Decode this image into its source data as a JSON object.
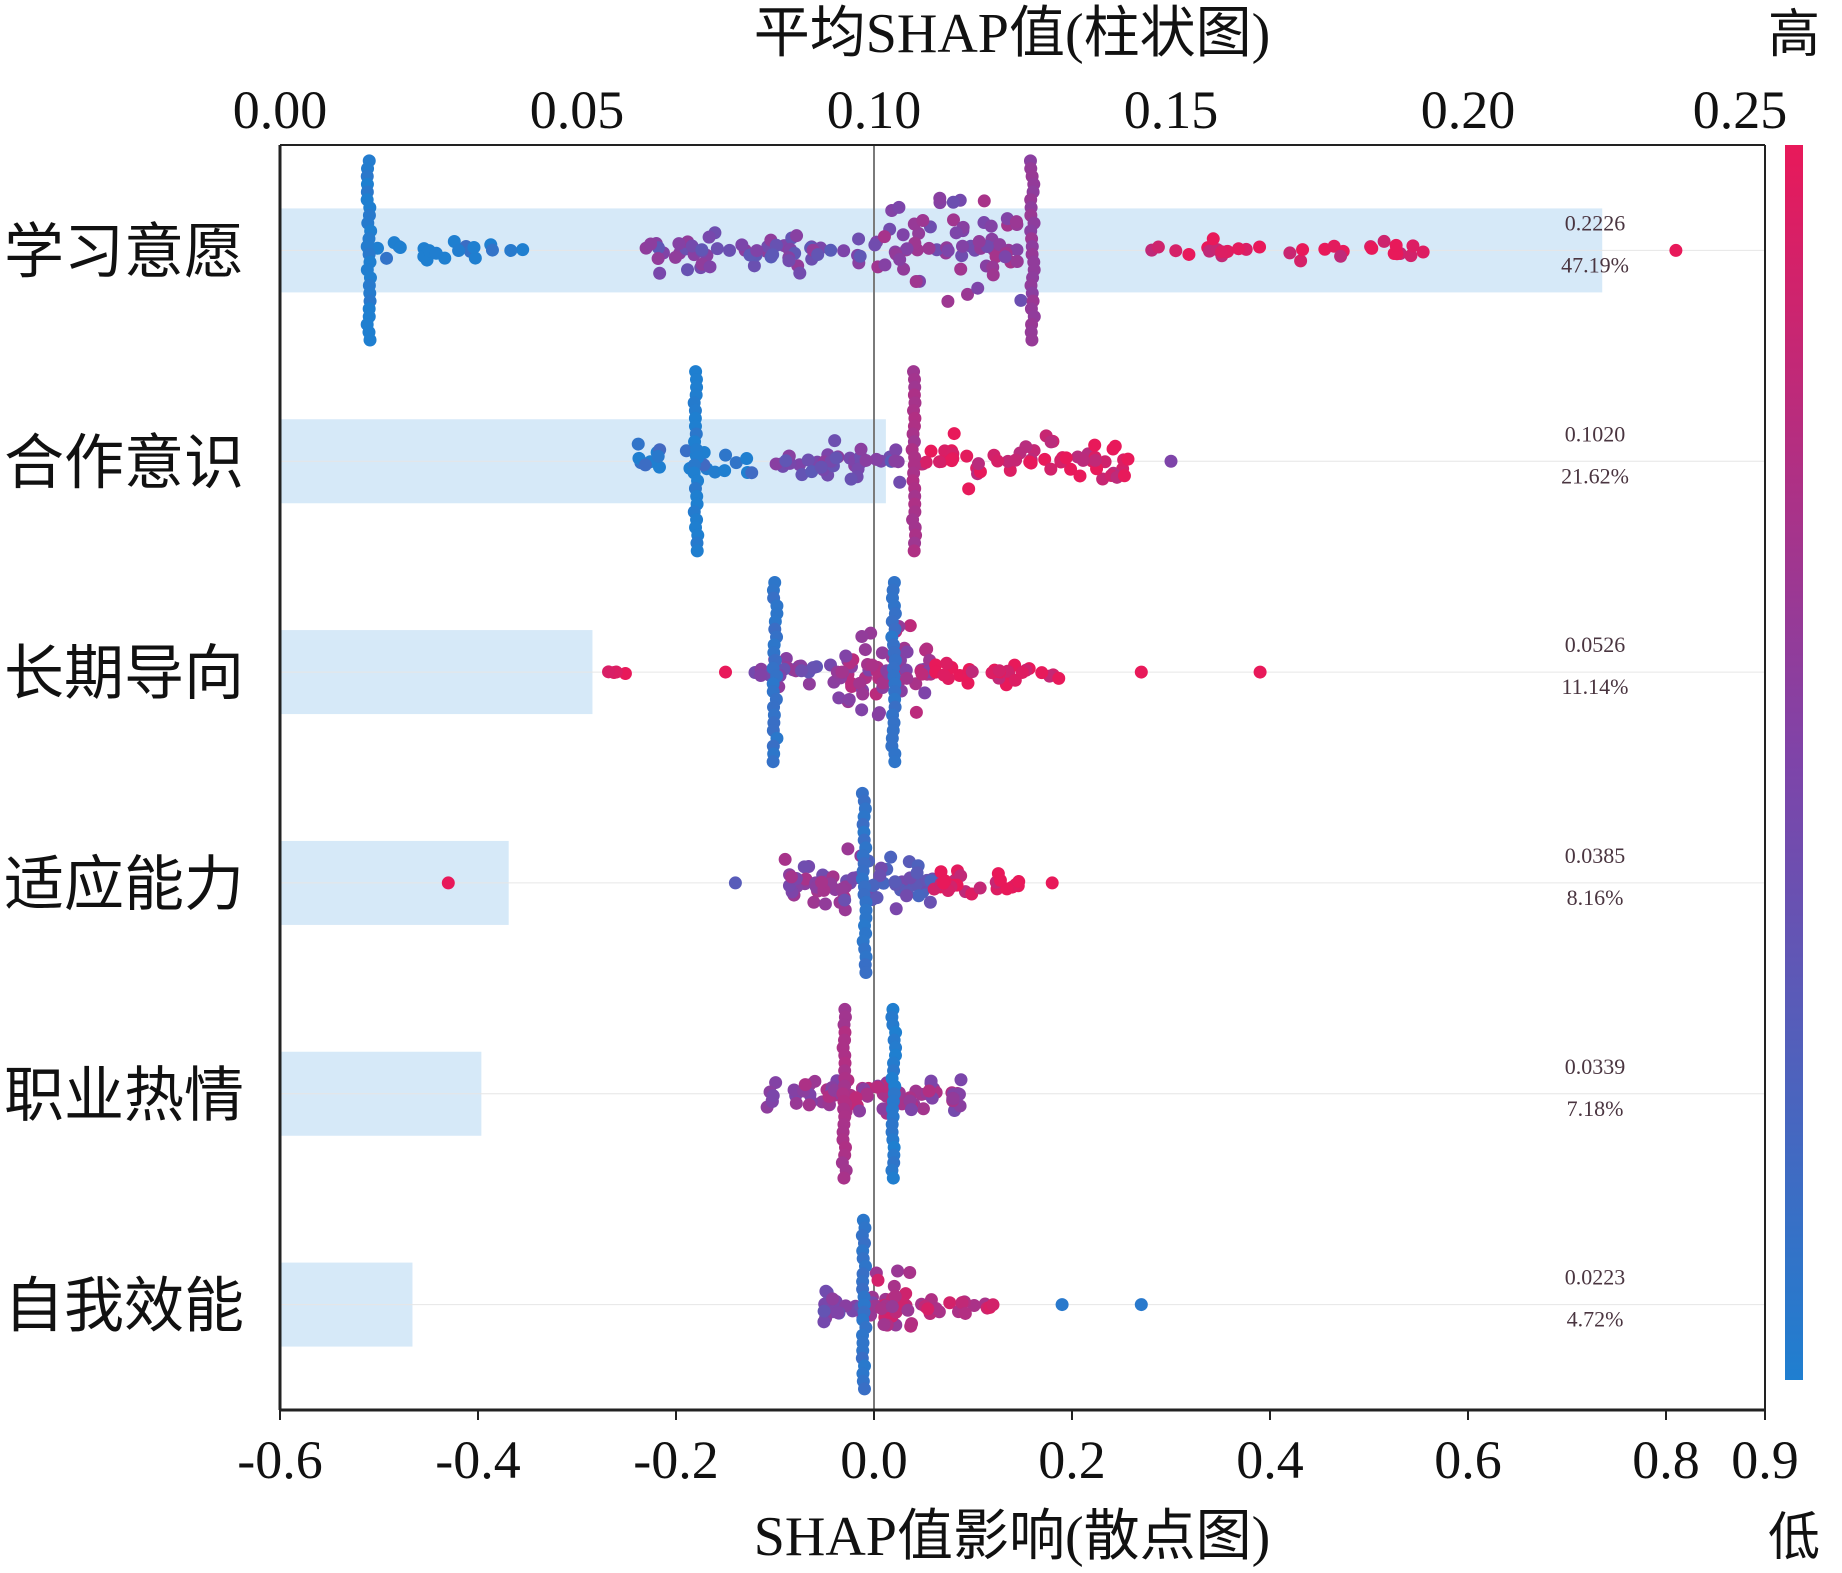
{
  "chart_data": {
    "type": "scatter",
    "title": "",
    "top_axis": {
      "label": "平均SHAP值(柱状图)",
      "ticks": [
        "0.00",
        "0.05",
        "0.10",
        "0.15",
        "0.20",
        "0.25"
      ],
      "range": [
        0,
        0.25
      ]
    },
    "bottom_axis": {
      "label": "SHAP值影响(散点图)",
      "ticks": [
        "-0.6",
        "-0.4",
        "-0.2",
        "0.0",
        "0.2",
        "0.4",
        "0.6",
        "0.8",
        "0.9"
      ],
      "range": [
        -0.6,
        0.9
      ]
    },
    "colorbar": {
      "high": "高",
      "low": "低",
      "high_color": "#e8195a",
      "low_color": "#1f7fd0"
    },
    "colors": {
      "bar": "#d6e9f8",
      "zero_line": "#7a7a7a",
      "axis": "#222222"
    },
    "features": [
      {
        "name": "学习意愿",
        "mean_shap": 0.2226,
        "value_label": "0.2226",
        "percent": "47.19%",
        "strips": [
          {
            "x": -0.51,
            "spread": 0.85
          },
          {
            "x": 0.16,
            "spread": 0.85
          }
        ],
        "clusters": [
          {
            "min": -0.53,
            "max": -0.35,
            "color": 0.0,
            "count": 22,
            "spread": 0.15
          },
          {
            "min": -0.24,
            "max": -0.01,
            "color": 0.45,
            "count": 60,
            "spread": 0.28
          },
          {
            "min": 0.0,
            "max": 0.15,
            "color": 0.55,
            "count": 70,
            "spread": 0.55
          },
          {
            "min": 0.28,
            "max": 0.56,
            "color": 0.95,
            "count": 32,
            "spread": 0.12
          }
        ],
        "outliers": [
          {
            "x": 0.81,
            "c": 1.0
          }
        ]
      },
      {
        "name": "合作意识",
        "mean_shap": 0.102,
        "value_label": "0.1020",
        "percent": "21.62%",
        "strips": [
          {
            "x": -0.18,
            "spread": 0.85
          },
          {
            "x": 0.04,
            "spread": 0.85
          }
        ],
        "clusters": [
          {
            "min": -0.24,
            "max": -0.12,
            "color": 0.05,
            "count": 22,
            "spread": 0.2
          },
          {
            "min": -0.1,
            "max": 0.03,
            "color": 0.45,
            "count": 40,
            "spread": 0.25
          },
          {
            "min": 0.04,
            "max": 0.26,
            "color": 0.92,
            "count": 60,
            "spread": 0.3
          }
        ],
        "outliers": [
          {
            "x": 0.3,
            "c": 0.5
          }
        ]
      },
      {
        "name": "长期导向",
        "mean_shap": 0.0526,
        "value_label": "0.0526",
        "percent": "11.14%",
        "strips": [
          {
            "x": -0.1,
            "spread": 0.85
          },
          {
            "x": 0.02,
            "spread": 0.85
          }
        ],
        "clusters": [
          {
            "min": -0.27,
            "max": -0.25,
            "color": 1.0,
            "count": 4,
            "spread": 0.08
          },
          {
            "min": -0.13,
            "max": -0.04,
            "color": 0.5,
            "count": 22,
            "spread": 0.22
          },
          {
            "min": -0.04,
            "max": 0.06,
            "color": 0.65,
            "count": 65,
            "spread": 0.55
          },
          {
            "min": 0.06,
            "max": 0.19,
            "color": 0.95,
            "count": 30,
            "spread": 0.15
          }
        ],
        "outliers": [
          {
            "x": -0.15,
            "c": 1.0
          },
          {
            "x": 0.27,
            "c": 1.0
          },
          {
            "x": 0.39,
            "c": 1.0
          }
        ]
      },
      {
        "name": "适应能力",
        "mean_shap": 0.0385,
        "value_label": "0.0385",
        "percent": "8.16%",
        "strips": [
          {
            "x": -0.01,
            "spread": 0.85
          }
        ],
        "clusters": [
          {
            "min": -0.09,
            "max": -0.01,
            "color": 0.55,
            "count": 40,
            "spread": 0.35
          },
          {
            "min": -0.01,
            "max": 0.06,
            "color": 0.35,
            "count": 35,
            "spread": 0.3
          },
          {
            "min": 0.06,
            "max": 0.15,
            "color": 0.95,
            "count": 25,
            "spread": 0.15
          }
        ],
        "outliers": [
          {
            "x": -0.43,
            "c": 1.0
          },
          {
            "x": -0.14,
            "c": 0.3
          },
          {
            "x": 0.18,
            "c": 1.0
          }
        ]
      },
      {
        "name": "职业热情",
        "mean_shap": 0.0339,
        "value_label": "0.0339",
        "percent": "7.18%",
        "strips": [
          {
            "x": -0.03,
            "spread": 0.8
          },
          {
            "x": 0.02,
            "spread": 0.8
          }
        ],
        "clusters": [
          {
            "min": -0.11,
            "max": -0.03,
            "color": 0.6,
            "count": 30,
            "spread": 0.2
          },
          {
            "min": -0.03,
            "max": 0.02,
            "color": 0.7,
            "count": 25,
            "spread": 0.25
          },
          {
            "min": 0.02,
            "max": 0.09,
            "color": 0.6,
            "count": 30,
            "spread": 0.2
          }
        ],
        "outliers": []
      },
      {
        "name": "自我效能",
        "mean_shap": 0.0223,
        "value_label": "0.0223",
        "percent": "4.72%",
        "strips": [
          {
            "x": -0.01,
            "spread": 0.8
          }
        ],
        "clusters": [
          {
            "min": -0.06,
            "max": 0.0,
            "color": 0.5,
            "count": 20,
            "spread": 0.25
          },
          {
            "min": 0.0,
            "max": 0.04,
            "color": 0.75,
            "count": 30,
            "spread": 0.4
          },
          {
            "min": 0.04,
            "max": 0.13,
            "color": 0.8,
            "count": 18,
            "spread": 0.12
          }
        ],
        "outliers": [
          {
            "x": 0.19,
            "c": 0.05
          },
          {
            "x": 0.27,
            "c": 0.05
          }
        ]
      }
    ]
  }
}
